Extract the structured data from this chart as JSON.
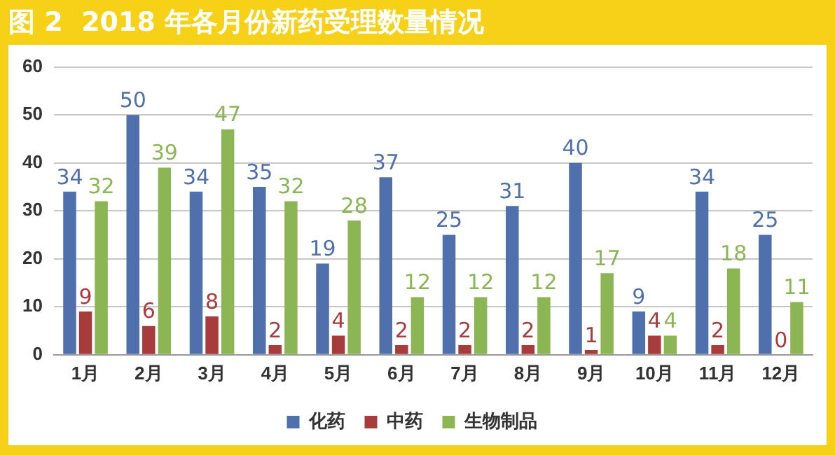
{
  "chart_data": {
    "type": "bar",
    "title": "图 2  2018 年各月份新药受理数量情况",
    "categories": [
      "1月",
      "2月",
      "3月",
      "4月",
      "5月",
      "6月",
      "7月",
      "8月",
      "9月",
      "10月",
      "11月",
      "12月"
    ],
    "series": [
      {
        "name": "化药",
        "color": "#4f6fad",
        "values": [
          34,
          50,
          34,
          35,
          19,
          37,
          25,
          31,
          40,
          9,
          34,
          25
        ]
      },
      {
        "name": "中药",
        "color": "#a83b3b",
        "values": [
          9,
          6,
          8,
          2,
          4,
          2,
          2,
          2,
          1,
          4,
          2,
          0
        ]
      },
      {
        "name": "生物制品",
        "color": "#8cb554",
        "values": [
          32,
          39,
          47,
          32,
          28,
          12,
          12,
          12,
          17,
          4,
          18,
          11
        ]
      }
    ],
    "ylim": [
      0,
      60
    ],
    "yticks": [
      0,
      10,
      20,
      30,
      40,
      50,
      60
    ],
    "grid": "y",
    "legend": "bottom",
    "data_labels": true
  }
}
